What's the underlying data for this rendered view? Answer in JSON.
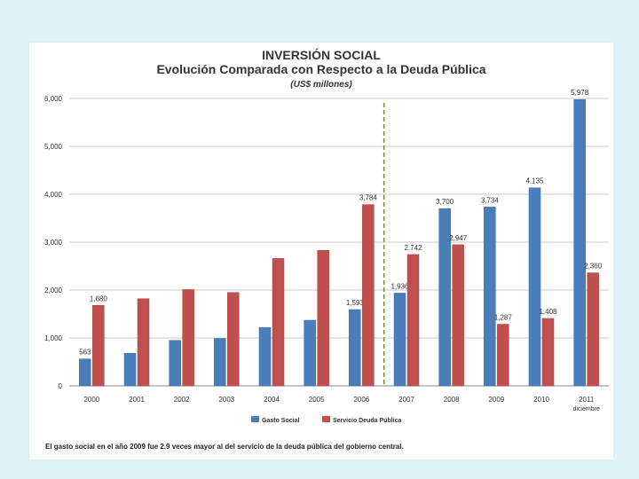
{
  "chart_data": {
    "type": "bar",
    "title": "INVERSIÓN SOCIAL",
    "subtitle": "Evolución Comparada con Respecto a la Deuda Pública",
    "units": "(US$ millones)",
    "categories": [
      "2000",
      "2001",
      "2002",
      "2003",
      "2004",
      "2005",
      "2006",
      "2007",
      "2008",
      "2009",
      "2010",
      "2011"
    ],
    "category_notes": {
      "2011": "diciembre"
    },
    "ylim": [
      0,
      6000
    ],
    "yticks": [
      "0",
      "1,000",
      "2,000",
      "3,000",
      "4,000",
      "5,000",
      "6,000"
    ],
    "ytick_values": [
      0,
      1000,
      2000,
      3000,
      4000,
      5000,
      6000
    ],
    "grid": true,
    "divider_after": "2006",
    "series": [
      {
        "name": "Gasto Social",
        "color": "#4a7ebb",
        "values": [
          563,
          680,
          950,
          990,
          1220,
          1370,
          1593,
          1936,
          3700,
          3734,
          4135,
          5978
        ],
        "labels": [
          "563",
          null,
          null,
          null,
          null,
          null,
          "1,593",
          "1,936",
          "3,700",
          "3,734",
          "4,135",
          "5,978"
        ]
      },
      {
        "name": "Servicio Deuda Pública",
        "color": "#c0504d",
        "values": [
          1680,
          1820,
          2010,
          1950,
          2660,
          2830,
          3784,
          2742,
          2947,
          1287,
          1408,
          2360
        ],
        "labels": [
          "1,680",
          null,
          null,
          null,
          null,
          null,
          "3,784",
          "2,742",
          "2,947",
          "1,287",
          "1,408",
          "2,360"
        ]
      }
    ],
    "legend": "bottom-center"
  },
  "footnote": "El gasto social en el año 2009 fue 2.9 veces mayor al del servicio de la deuda pública del gobierno central."
}
